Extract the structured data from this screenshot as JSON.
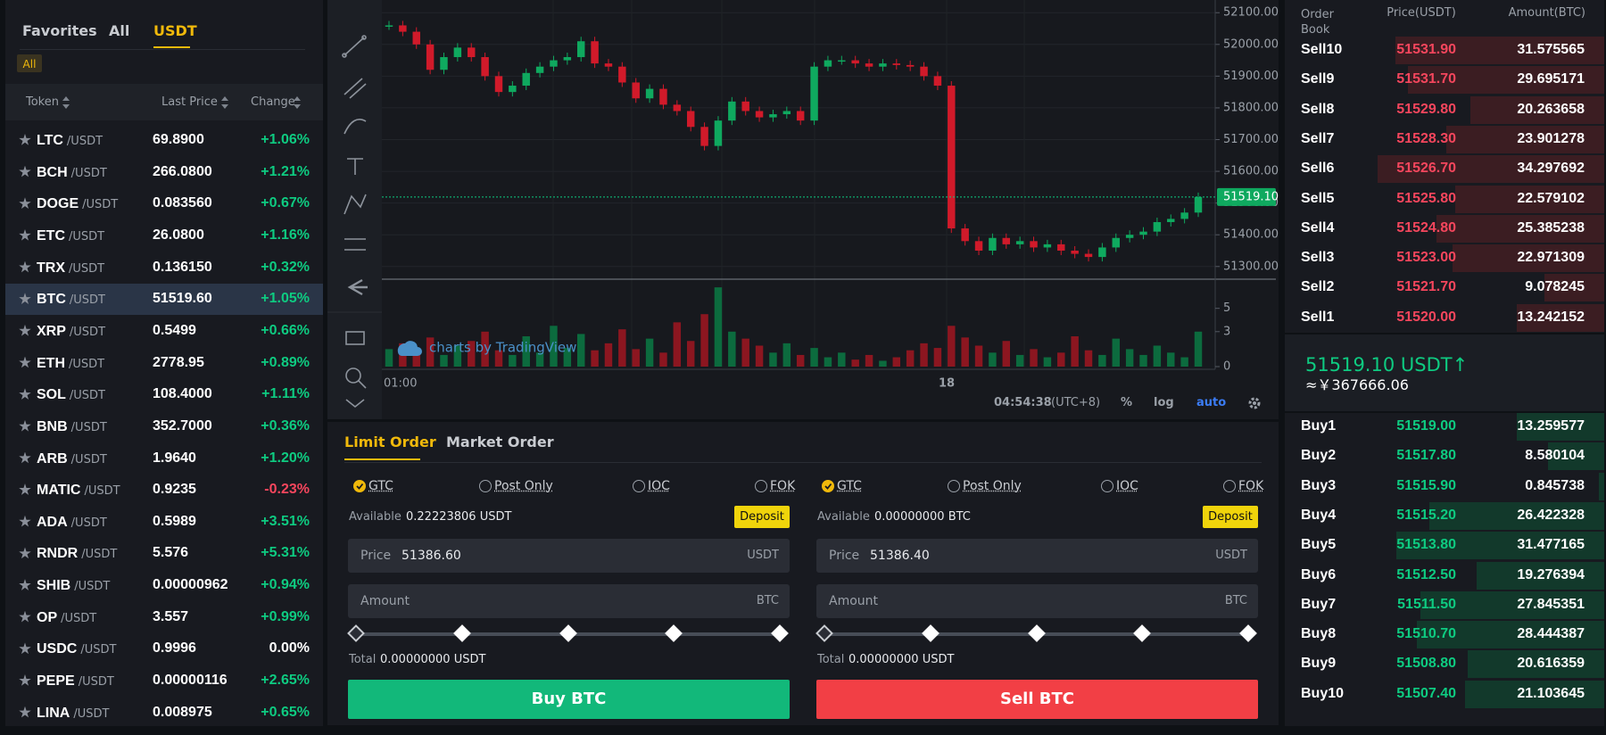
{
  "sidebar": {
    "tabs": [
      "Favorites",
      "All",
      "USDT"
    ],
    "active_tab": "USDT",
    "filter": "All",
    "columns": [
      "Token",
      "Last Price",
      "Change"
    ],
    "selected": "BTC",
    "tokens": [
      {
        "name": "LTC",
        "pair": "/USDT",
        "price": "69.8900",
        "change": "+1.06%"
      },
      {
        "name": "BCH",
        "pair": "/USDT",
        "price": "266.0800",
        "change": "+1.21%"
      },
      {
        "name": "DOGE",
        "pair": "/USDT",
        "price": "0.083560",
        "change": "+0.67%"
      },
      {
        "name": "ETC",
        "pair": "/USDT",
        "price": "26.0800",
        "change": "+1.16%"
      },
      {
        "name": "TRX",
        "pair": "/USDT",
        "price": "0.136150",
        "change": "+0.32%"
      },
      {
        "name": "BTC",
        "pair": "/USDT",
        "price": "51519.60",
        "change": "+1.05%"
      },
      {
        "name": "XRP",
        "pair": "/USDT",
        "price": "0.5499",
        "change": "+0.66%"
      },
      {
        "name": "ETH",
        "pair": "/USDT",
        "price": "2778.95",
        "change": "+0.89%"
      },
      {
        "name": "SOL",
        "pair": "/USDT",
        "price": "108.4000",
        "change": "+1.11%"
      },
      {
        "name": "BNB",
        "pair": "/USDT",
        "price": "352.7000",
        "change": "+0.36%"
      },
      {
        "name": "ARB",
        "pair": "/USDT",
        "price": "1.9640",
        "change": "+1.20%"
      },
      {
        "name": "MATIC",
        "pair": "/USDT",
        "price": "0.9235",
        "change": "-0.23%"
      },
      {
        "name": "ADA",
        "pair": "/USDT",
        "price": "0.5989",
        "change": "+3.51%"
      },
      {
        "name": "RNDR",
        "pair": "/USDT",
        "price": "5.576",
        "change": "+5.31%"
      },
      {
        "name": "SHIB",
        "pair": "/USDT",
        "price": "0.00000962",
        "change": "+0.94%"
      },
      {
        "name": "OP",
        "pair": "/USDT",
        "price": "3.557",
        "change": "+0.99%"
      },
      {
        "name": "USDC",
        "pair": "/USDT",
        "price": "0.9996",
        "change": "0.00%"
      },
      {
        "name": "PEPE",
        "pair": "/USDT",
        "price": "0.00000116",
        "change": "+2.65%"
      },
      {
        "name": "LINA",
        "pair": "/USDT",
        "price": "0.008975",
        "change": "+0.65%"
      }
    ]
  },
  "chart": {
    "ylim": [
      51260,
      52140
    ],
    "price_ticks": [
      {
        "value": 52100,
        "label": "52100.00"
      },
      {
        "value": 52000,
        "label": "52000.00"
      },
      {
        "value": 51900,
        "label": "51900.00"
      },
      {
        "value": 51800,
        "label": "51800.00"
      },
      {
        "value": 51700,
        "label": "51700.00"
      },
      {
        "value": 51600,
        "label": "51600.00"
      },
      {
        "value": 51500,
        "label": "51500.00"
      },
      {
        "value": 51400,
        "label": "51400.00"
      },
      {
        "value": 51300,
        "label": "51300.00"
      }
    ],
    "volume_ylim": [
      0,
      7.5
    ],
    "volume_ticks": [
      0,
      3,
      5
    ],
    "time_labels": [
      "01:00",
      "18"
    ],
    "last_price": {
      "value": 51519.1,
      "label": "51519.10"
    },
    "closes": [
      52060,
      52040,
      52000,
      51920,
      51960,
      51990,
      51960,
      51900,
      51850,
      51870,
      51910,
      51930,
      51950,
      51960,
      52010,
      51940,
      51930,
      51880,
      51830,
      51860,
      51810,
      51790,
      51740,
      51680,
      51760,
      51820,
      51790,
      51770,
      51780,
      51790,
      51760,
      51930,
      51950,
      51950,
      51940,
      51930,
      51940,
      51935,
      51930,
      51900,
      51870,
      51420,
      51380,
      51350,
      51390,
      51370,
      51380,
      51360,
      51370,
      51350,
      51340,
      51330,
      51360,
      51390,
      51400,
      51410,
      51440,
      51450,
      51470,
      51519.1
    ],
    "volumes": [
      1.5,
      2,
      1.2,
      2.5,
      1,
      1.8,
      2.2,
      3,
      1.4,
      1,
      2.6,
      1.2,
      3.5,
      1.6,
      2.8,
      1.4,
      2,
      3.2,
      1.5,
      2.4,
      1.2,
      3.8,
      2.2,
      4.5,
      6.8,
      3,
      2.4,
      1.8,
      1.2,
      2,
      1,
      1.6,
      0.8,
      1.2,
      0.6,
      1,
      0.5,
      0.8,
      1.4,
      2,
      1.6,
      3.5,
      2.5,
      1.8,
      1.2,
      2.2,
      1,
      1.5,
      0.8,
      1.2,
      2.6,
      1.4,
      1,
      2.4,
      1.5,
      1,
      1.8,
      1.2,
      0.8,
      3
    ],
    "watermark": "charts by TradingView",
    "clock": "04:54:38",
    "timezone": "(UTC+8)",
    "options": [
      "%",
      "log",
      "auto"
    ],
    "active_option": "auto"
  },
  "order_form": {
    "tabs": [
      "Limit Order",
      "Market Order"
    ],
    "active_tab": "Limit Order",
    "buy": {
      "options": [
        "GTC",
        "Post Only",
        "IOC",
        "FOK"
      ],
      "checked": "GTC",
      "available_label": "Available",
      "available": "0.22223806 USDT",
      "deposit": "Deposit",
      "price_label": "Price",
      "price": "51386.60",
      "price_unit": "USDT",
      "amount_label": "Amount",
      "amount_unit": "BTC",
      "total_label": "Total",
      "total": "0.00000000 USDT",
      "button": "Buy BTC"
    },
    "sell": {
      "options": [
        "GTC",
        "Post Only",
        "IOC",
        "FOK"
      ],
      "checked": "GTC",
      "available_label": "Available",
      "available": "0.00000000 BTC",
      "deposit": "Deposit",
      "price_label": "Price",
      "price": "51386.40",
      "price_unit": "USDT",
      "amount_label": "Amount",
      "amount_unit": "BTC",
      "total_label": "Total",
      "total": "0.00000000 USDT",
      "button": "Sell BTC"
    }
  },
  "order_book": {
    "title": "Order Book",
    "price_header": "Price(USDT)",
    "amount_header": "Amount(BTC)",
    "sells": [
      {
        "label": "Sell10",
        "price": "51531.90",
        "amount": 31.575565
      },
      {
        "label": "Sell9",
        "price": "51531.70",
        "amount": 29.695171
      },
      {
        "label": "Sell8",
        "price": "51529.80",
        "amount": 20.263658
      },
      {
        "label": "Sell7",
        "price": "51528.30",
        "amount": 23.901278
      },
      {
        "label": "Sell6",
        "price": "51526.70",
        "amount": 34.297692
      },
      {
        "label": "Sell5",
        "price": "51525.80",
        "amount": 22.579102
      },
      {
        "label": "Sell4",
        "price": "51524.80",
        "amount": 25.385238
      },
      {
        "label": "Sell3",
        "price": "51523.00",
        "amount": 22.971309
      },
      {
        "label": "Sell2",
        "price": "51521.70",
        "amount": 9.078245
      },
      {
        "label": "Sell1",
        "price": "51520.00",
        "amount": 13.242152
      }
    ],
    "mid_price": "51519.10 USDT↑",
    "mid_fiat": "≈￥367666.06",
    "buys": [
      {
        "label": "Buy1",
        "price": "51519.00",
        "amount": 13.259577
      },
      {
        "label": "Buy2",
        "price": "51517.80",
        "amount": 8.580104
      },
      {
        "label": "Buy3",
        "price": "51515.90",
        "amount": 0.845738
      },
      {
        "label": "Buy4",
        "price": "51515.20",
        "amount": 26.422328
      },
      {
        "label": "Buy5",
        "price": "51513.80",
        "amount": 31.477165
      },
      {
        "label": "Buy6",
        "price": "51512.50",
        "amount": 19.276394
      },
      {
        "label": "Buy7",
        "price": "51511.50",
        "amount": 27.845351
      },
      {
        "label": "Buy8",
        "price": "51510.70",
        "amount": 28.444387
      },
      {
        "label": "Buy9",
        "price": "51508.80",
        "amount": 20.616359
      },
      {
        "label": "Buy10",
        "price": "51507.40",
        "amount": 21.103645
      }
    ]
  }
}
